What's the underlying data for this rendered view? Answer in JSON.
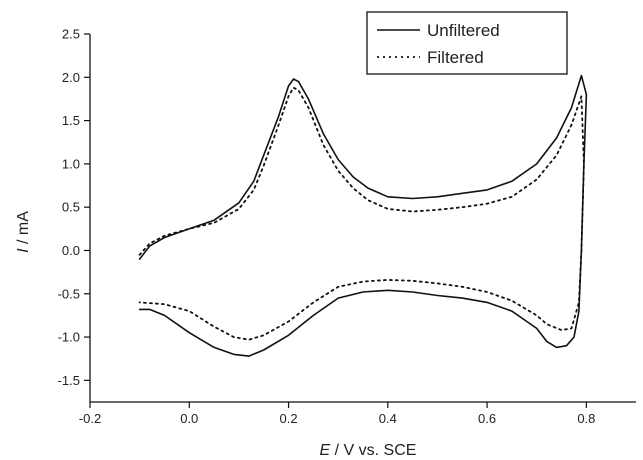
{
  "chart_data": {
    "type": "line",
    "title": "",
    "xlabel_var": "E",
    "xlabel_rest": " / V vs. SCE",
    "ylabel_var": "I",
    "ylabel_rest": " / mA",
    "xlim": [
      -0.2,
      0.9
    ],
    "ylim": [
      -1.75,
      2.5
    ],
    "xticks": [
      -0.2,
      0.0,
      0.2,
      0.4,
      0.6,
      0.8
    ],
    "xtick_labels": [
      "-0.2",
      "0.0",
      "0.2",
      "0.4",
      "0.6",
      "0.8"
    ],
    "yticks": [
      -1.5,
      -1.0,
      -0.5,
      0.0,
      0.5,
      1.0,
      1.5,
      2.0,
      2.5
    ],
    "ytick_labels": [
      "-1.5",
      "-1.0",
      "-0.5",
      "0.0",
      "0.5",
      "1.0",
      "1.5",
      "2.0",
      "2.5"
    ],
    "grid": false,
    "legend_position": "top-right",
    "series": [
      {
        "name": "Unfiltered",
        "style": "solid",
        "color": "#111111",
        "points": [
          [
            -0.1,
            -0.1
          ],
          [
            -0.08,
            0.05
          ],
          [
            -0.05,
            0.15
          ],
          [
            0.0,
            0.25
          ],
          [
            0.05,
            0.35
          ],
          [
            0.1,
            0.55
          ],
          [
            0.13,
            0.8
          ],
          [
            0.15,
            1.1
          ],
          [
            0.18,
            1.55
          ],
          [
            0.2,
            1.9
          ],
          [
            0.21,
            1.98
          ],
          [
            0.22,
            1.95
          ],
          [
            0.24,
            1.75
          ],
          [
            0.27,
            1.35
          ],
          [
            0.3,
            1.05
          ],
          [
            0.33,
            0.85
          ],
          [
            0.36,
            0.72
          ],
          [
            0.4,
            0.62
          ],
          [
            0.45,
            0.6
          ],
          [
            0.5,
            0.62
          ],
          [
            0.55,
            0.66
          ],
          [
            0.6,
            0.7
          ],
          [
            0.65,
            0.8
          ],
          [
            0.7,
            1.0
          ],
          [
            0.74,
            1.3
          ],
          [
            0.77,
            1.65
          ],
          [
            0.79,
            2.02
          ],
          [
            0.8,
            1.8
          ],
          [
            0.795,
            1.0
          ],
          [
            0.79,
            0.0
          ],
          [
            0.785,
            -0.7
          ],
          [
            0.775,
            -1.0
          ],
          [
            0.76,
            -1.1
          ],
          [
            0.74,
            -1.12
          ],
          [
            0.72,
            -1.05
          ],
          [
            0.7,
            -0.9
          ],
          [
            0.65,
            -0.7
          ],
          [
            0.6,
            -0.6
          ],
          [
            0.55,
            -0.55
          ],
          [
            0.5,
            -0.52
          ],
          [
            0.45,
            -0.48
          ],
          [
            0.4,
            -0.46
          ],
          [
            0.35,
            -0.48
          ],
          [
            0.3,
            -0.55
          ],
          [
            0.25,
            -0.75
          ],
          [
            0.2,
            -0.98
          ],
          [
            0.15,
            -1.15
          ],
          [
            0.12,
            -1.22
          ],
          [
            0.09,
            -1.2
          ],
          [
            0.05,
            -1.12
          ],
          [
            0.0,
            -0.95
          ],
          [
            -0.05,
            -0.75
          ],
          [
            -0.08,
            -0.68
          ],
          [
            -0.1,
            -0.68
          ]
        ]
      },
      {
        "name": "Filtered",
        "style": "dotted",
        "color": "#111111",
        "points": [
          [
            -0.1,
            -0.05
          ],
          [
            -0.08,
            0.08
          ],
          [
            -0.05,
            0.17
          ],
          [
            0.0,
            0.25
          ],
          [
            0.05,
            0.32
          ],
          [
            0.1,
            0.48
          ],
          [
            0.13,
            0.7
          ],
          [
            0.15,
            0.98
          ],
          [
            0.18,
            1.45
          ],
          [
            0.2,
            1.78
          ],
          [
            0.21,
            1.88
          ],
          [
            0.22,
            1.85
          ],
          [
            0.24,
            1.65
          ],
          [
            0.27,
            1.22
          ],
          [
            0.3,
            0.92
          ],
          [
            0.33,
            0.72
          ],
          [
            0.36,
            0.58
          ],
          [
            0.4,
            0.48
          ],
          [
            0.45,
            0.45
          ],
          [
            0.5,
            0.47
          ],
          [
            0.55,
            0.5
          ],
          [
            0.6,
            0.54
          ],
          [
            0.65,
            0.62
          ],
          [
            0.7,
            0.82
          ],
          [
            0.74,
            1.1
          ],
          [
            0.77,
            1.45
          ],
          [
            0.79,
            1.78
          ],
          [
            0.795,
            1.0
          ],
          [
            0.79,
            0.0
          ],
          [
            0.785,
            -0.6
          ],
          [
            0.77,
            -0.9
          ],
          [
            0.75,
            -0.92
          ],
          [
            0.72,
            -0.85
          ],
          [
            0.7,
            -0.75
          ],
          [
            0.65,
            -0.58
          ],
          [
            0.6,
            -0.48
          ],
          [
            0.55,
            -0.42
          ],
          [
            0.5,
            -0.38
          ],
          [
            0.45,
            -0.35
          ],
          [
            0.4,
            -0.34
          ],
          [
            0.35,
            -0.36
          ],
          [
            0.3,
            -0.42
          ],
          [
            0.25,
            -0.6
          ],
          [
            0.2,
            -0.82
          ],
          [
            0.15,
            -0.98
          ],
          [
            0.12,
            -1.03
          ],
          [
            0.09,
            -1.0
          ],
          [
            0.05,
            -0.88
          ],
          [
            0.0,
            -0.7
          ],
          [
            -0.05,
            -0.62
          ],
          [
            -0.1,
            -0.6
          ]
        ]
      }
    ]
  }
}
